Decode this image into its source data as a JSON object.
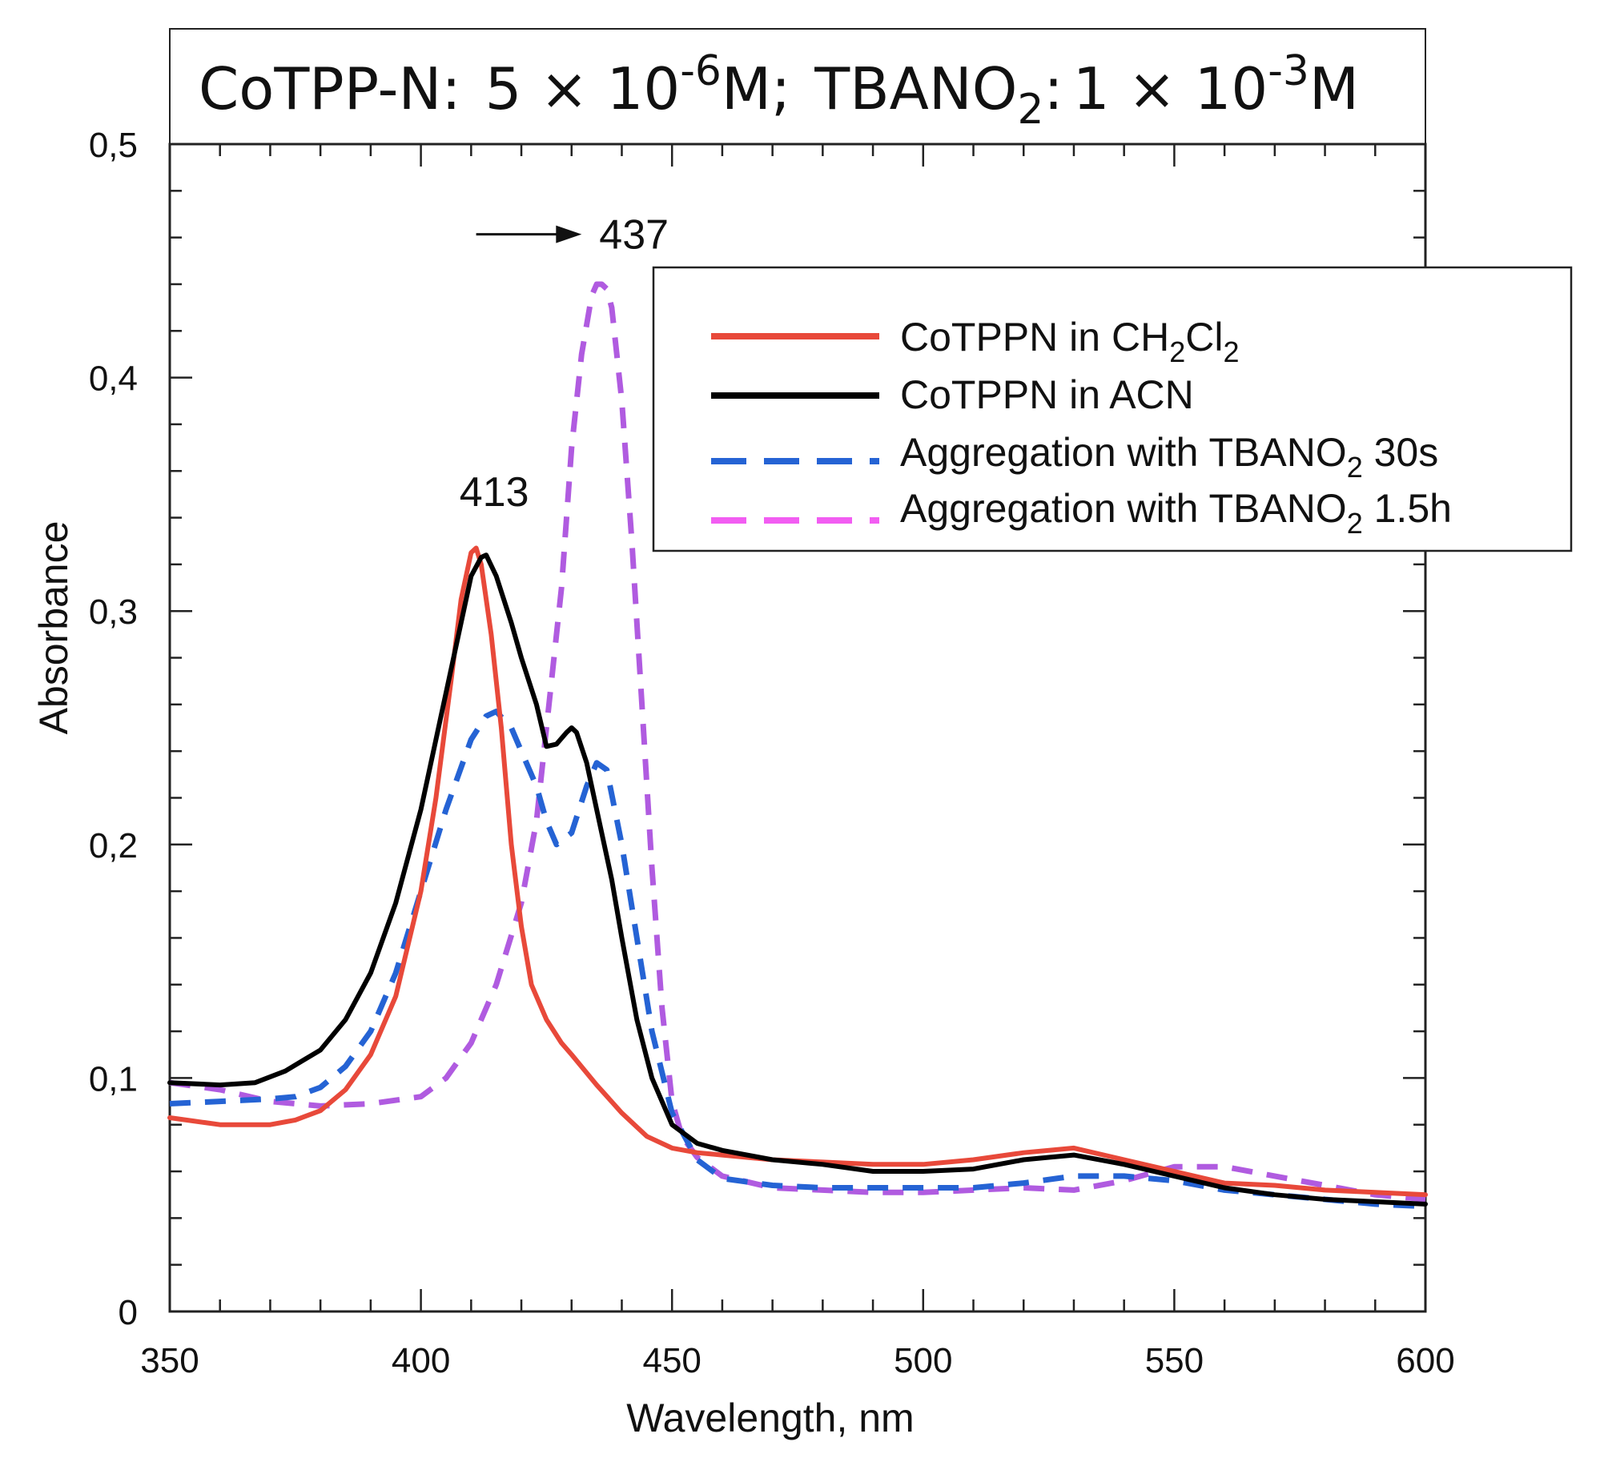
{
  "chart_data": {
    "type": "line",
    "title": {
      "compound": "CoTPP-N:",
      "conc_compound": "5 × 10",
      "conc_compound_exp": "-6",
      "conc_compound_unit": "M;",
      "reagent": "TBANO",
      "reagent_sub": "2",
      "reagent_colon": ":",
      "conc_reagent": "1 × 10",
      "conc_reagent_exp": "-3",
      "conc_reagent_unit": "M"
    },
    "xlabel": "Wavelength, nm",
    "ylabel": "Absorbance",
    "xlim": [
      350,
      600
    ],
    "ylim": [
      0,
      0.5
    ],
    "x_ticks": [
      "350",
      "400",
      "450",
      "500",
      "550",
      "600"
    ],
    "x_tick_values": [
      350,
      400,
      450,
      500,
      550,
      600
    ],
    "y_ticks": [
      "0",
      "0,1",
      "0,2",
      "0,3",
      "0,4",
      "0,5"
    ],
    "y_tick_values": [
      0,
      0.1,
      0.2,
      0.3,
      0.4,
      0.5
    ],
    "annotations": [
      {
        "text": "413",
        "x": 413,
        "y": 0.345
      },
      {
        "text": "437",
        "x": 437,
        "y": 0.46,
        "arrow_from_x": 411,
        "arrow_to_x": 432,
        "arrow_y": 0.46
      }
    ],
    "series": [
      {
        "name": "CoTPPN in CH2Cl2",
        "label_main": "CoTPPN in CH",
        "label_sub1": "2",
        "label_mid": "Cl",
        "label_sub2": "2",
        "label_tail": "",
        "color": "#e8493a",
        "dashed": false,
        "x": [
          350,
          360,
          370,
          375,
          380,
          385,
          390,
          395,
          400,
          403,
          406,
          408,
          410,
          411,
          412,
          414,
          416,
          418,
          420,
          422,
          425,
          428,
          430,
          435,
          440,
          445,
          450,
          455,
          460,
          470,
          480,
          490,
          500,
          510,
          520,
          530,
          540,
          550,
          560,
          570,
          580,
          590,
          600
        ],
        "values": [
          0.083,
          0.08,
          0.08,
          0.082,
          0.086,
          0.095,
          0.11,
          0.135,
          0.18,
          0.22,
          0.27,
          0.305,
          0.325,
          0.327,
          0.32,
          0.29,
          0.25,
          0.2,
          0.165,
          0.14,
          0.125,
          0.115,
          0.11,
          0.097,
          0.085,
          0.075,
          0.07,
          0.068,
          0.067,
          0.065,
          0.064,
          0.063,
          0.063,
          0.065,
          0.068,
          0.07,
          0.065,
          0.06,
          0.055,
          0.054,
          0.052,
          0.051,
          0.05
        ]
      },
      {
        "name": "CoTPPN in ACN",
        "label_main": "CoTPPN in ACN",
        "label_sub1": "",
        "label_mid": "",
        "label_sub2": "",
        "label_tail": "",
        "color": "#000000",
        "dashed": false,
        "x": [
          350,
          360,
          367,
          373,
          380,
          385,
          390,
          395,
          400,
          404,
          408,
          410,
          412,
          413,
          415,
          418,
          420,
          423,
          425,
          427,
          429,
          430,
          431,
          433,
          435,
          438,
          440,
          443,
          446,
          450,
          455,
          460,
          470,
          480,
          490,
          500,
          510,
          520,
          525,
          530,
          540,
          550,
          560,
          570,
          580,
          590,
          600
        ],
        "values": [
          0.098,
          0.097,
          0.098,
          0.103,
          0.112,
          0.125,
          0.145,
          0.175,
          0.215,
          0.255,
          0.295,
          0.315,
          0.323,
          0.324,
          0.315,
          0.295,
          0.28,
          0.26,
          0.242,
          0.243,
          0.248,
          0.25,
          0.248,
          0.235,
          0.215,
          0.185,
          0.16,
          0.125,
          0.1,
          0.08,
          0.072,
          0.069,
          0.065,
          0.063,
          0.06,
          0.06,
          0.061,
          0.065,
          0.066,
          0.067,
          0.063,
          0.058,
          0.053,
          0.05,
          0.048,
          0.047,
          0.046
        ]
      },
      {
        "name": "Aggregation with TBANO2 30s",
        "label_main": "Aggregation with TBANO",
        "label_sub1": "2",
        "label_mid": "",
        "label_sub2": "",
        "label_tail": " 30s",
        "color": "#2563d4",
        "dashed": true,
        "x": [
          350,
          360,
          370,
          375,
          380,
          385,
          390,
          395,
          400,
          405,
          410,
          413,
          415,
          418,
          420,
          423,
          425,
          427,
          430,
          433,
          435,
          437,
          440,
          443,
          446,
          450,
          455,
          460,
          470,
          480,
          490,
          500,
          510,
          520,
          530,
          540,
          550,
          560,
          570,
          580,
          590,
          600
        ],
        "values": [
          0.089,
          0.09,
          0.091,
          0.092,
          0.096,
          0.105,
          0.12,
          0.145,
          0.18,
          0.215,
          0.245,
          0.255,
          0.257,
          0.25,
          0.24,
          0.225,
          0.21,
          0.2,
          0.205,
          0.225,
          0.235,
          0.232,
          0.2,
          0.16,
          0.12,
          0.085,
          0.065,
          0.057,
          0.054,
          0.053,
          0.053,
          0.053,
          0.053,
          0.055,
          0.058,
          0.058,
          0.056,
          0.052,
          0.05,
          0.048,
          0.046,
          0.045
        ]
      },
      {
        "name": "Aggregation with TBANO2 1.5h",
        "label_main": "Aggregation with TBANO",
        "label_sub1": "2",
        "label_mid": "",
        "label_sub2": "",
        "label_tail": " 1.5h",
        "color": "#b05be0",
        "legend_color": "#f25df2",
        "dashed": true,
        "x": [
          350,
          360,
          370,
          380,
          390,
          400,
          405,
          410,
          415,
          420,
          423,
          425,
          428,
          430,
          432,
          434,
          435,
          436,
          437,
          438,
          440,
          442,
          444,
          446,
          448,
          450,
          452,
          455,
          460,
          470,
          480,
          490,
          500,
          510,
          520,
          530,
          540,
          550,
          560,
          570,
          580,
          590,
          600
        ],
        "values": [
          0.098,
          0.095,
          0.09,
          0.088,
          0.089,
          0.092,
          0.1,
          0.115,
          0.14,
          0.175,
          0.21,
          0.25,
          0.31,
          0.37,
          0.41,
          0.435,
          0.44,
          0.44,
          0.438,
          0.43,
          0.39,
          0.33,
          0.26,
          0.19,
          0.13,
          0.09,
          0.075,
          0.066,
          0.058,
          0.053,
          0.052,
          0.051,
          0.051,
          0.052,
          0.053,
          0.052,
          0.056,
          0.062,
          0.062,
          0.058,
          0.054,
          0.05,
          0.048
        ]
      }
    ],
    "legend_position": "top-right"
  }
}
